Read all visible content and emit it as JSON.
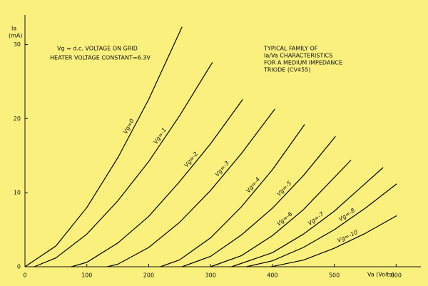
{
  "chart_data": {
    "type": "line",
    "x_label": "Va (Volts)",
    "y_label": [
      "Ia",
      "(mA)"
    ],
    "annotations": [
      "Vg = d.c. VOLTAGE ON GRID",
      "HEATER VOLTAGE CONSTANT=6.3V",
      "TYPICAL FAMILY OF",
      "Ia/Va CHARACTERISTICS",
      "FOR A MEDIUM IMPEDANCE",
      "TRIODE (CV455)"
    ],
    "xlim": [
      0,
      640
    ],
    "ylim": [
      0,
      34
    ],
    "xticks": [
      0,
      100,
      200,
      300,
      400,
      500,
      600
    ],
    "yticks": [
      0,
      10,
      20,
      30
    ],
    "color": "#000000",
    "series": [
      {
        "name": "Vg=0",
        "x": [
          0,
          50,
          100,
          150,
          200,
          254
        ],
        "values": [
          0,
          2.8,
          8,
          14.7,
          22.6,
          32.4
        ]
      },
      {
        "name": "Vg=-1",
        "x": [
          15,
          50,
          100,
          150,
          200,
          250,
          303
        ],
        "values": [
          0,
          1.2,
          4.4,
          8.9,
          14.2,
          20.4,
          27.6
        ]
      },
      {
        "name": "Vg=-2",
        "x": [
          75,
          100,
          150,
          200,
          250,
          300,
          352
        ],
        "values": [
          0,
          0.6,
          3.2,
          6.8,
          11.5,
          16.6,
          22.6
        ]
      },
      {
        "name": "Vg=-3",
        "x": [
          133,
          150,
          200,
          250,
          300,
          350,
          404
        ],
        "values": [
          0,
          0.34,
          2.6,
          6,
          10.3,
          15.3,
          21.3
        ]
      },
      {
        "name": "Vg=-4",
        "x": [
          219,
          250,
          300,
          350,
          400,
          452
        ],
        "values": [
          0,
          0.93,
          3.9,
          8.1,
          13.1,
          19.2
        ]
      },
      {
        "name": "Vg=-5",
        "x": [
          254,
          300,
          350,
          400,
          450,
          502
        ],
        "values": [
          0,
          1.4,
          4.3,
          7.9,
          12.3,
          17.6
        ]
      },
      {
        "name": "Vg=-6",
        "x": [
          300,
          350,
          400,
          450,
          527
        ],
        "values": [
          0,
          1.5,
          4.2,
          7.7,
          14.4
        ]
      },
      {
        "name": "Vg=-7",
        "x": [
          334,
          400,
          450,
          500,
          579
        ],
        "values": [
          0,
          1.9,
          4.4,
          7.5,
          13.4
        ]
      },
      {
        "name": "Vg=-8",
        "x": [
          358,
          400,
          450,
          500,
          550,
          601
        ],
        "values": [
          0,
          0.8,
          2.6,
          5,
          7.9,
          11.2
        ]
      },
      {
        "name": "Vg=-10",
        "x": [
          398,
          450,
          500,
          550,
          601
        ],
        "values": [
          0,
          0.9,
          2.5,
          4.5,
          6.9
        ]
      }
    ]
  }
}
